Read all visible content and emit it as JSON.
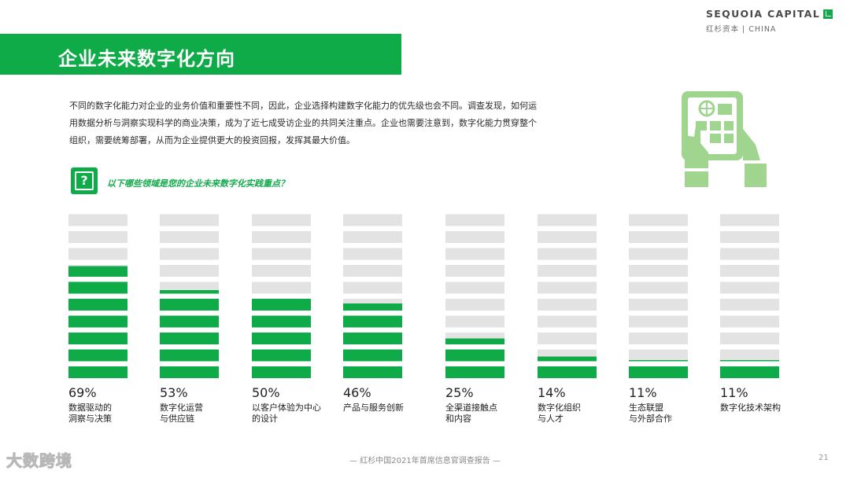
{
  "brand": {
    "main": "SEQUOIA CAPITAL",
    "sub": "红杉资本 | CHINA"
  },
  "title": "企业未来数字化方向",
  "intro": "不同的数字化能力对企业的业务价值和重要性不同，因此，企业选择构建数字化能力的优先级也会不同。调查发现，如何运用数据分析与洞察实现科学的商业决策，成为了近七成受访企业的共同关注重点。企业也需要注意到，数字化能力贯穿整个组织，需要统筹部署，从而为企业提供更大的投资回报，发挥其最大价值。",
  "question_icon": "question-mark-icon",
  "question": "以下哪些领域是您的企业未来数字化实践重点？",
  "illustration_icon": "tablet-touch-icon",
  "colors": {
    "accent": "#0eab48",
    "bar_bg": "#e3e3e3"
  },
  "chart_data": {
    "type": "bar",
    "segments_per_bar": 10,
    "categories": [
      [
        "数据驱动的",
        "洞察与决策"
      ],
      [
        "数字化运营",
        "与供应链"
      ],
      [
        "以客户体验为中心",
        "的设计"
      ],
      [
        "产品与服务创新"
      ],
      [
        "全渠道接触点",
        "和内容"
      ],
      [
        "数字化组织",
        "与人才"
      ],
      [
        "生态联盟",
        "与外部合作"
      ],
      [
        "数字化技术架构"
      ]
    ],
    "values": [
      69,
      53,
      50,
      46,
      25,
      14,
      11,
      11
    ],
    "value_labels": [
      "69%",
      "53%",
      "50%",
      "46%",
      "25%",
      "14%",
      "11%",
      "11%"
    ],
    "ylim": [
      0,
      100
    ]
  },
  "footer": "— 红杉中国2021年首席信息官调查报告 —",
  "page": "21",
  "watermark": "大数跨境"
}
